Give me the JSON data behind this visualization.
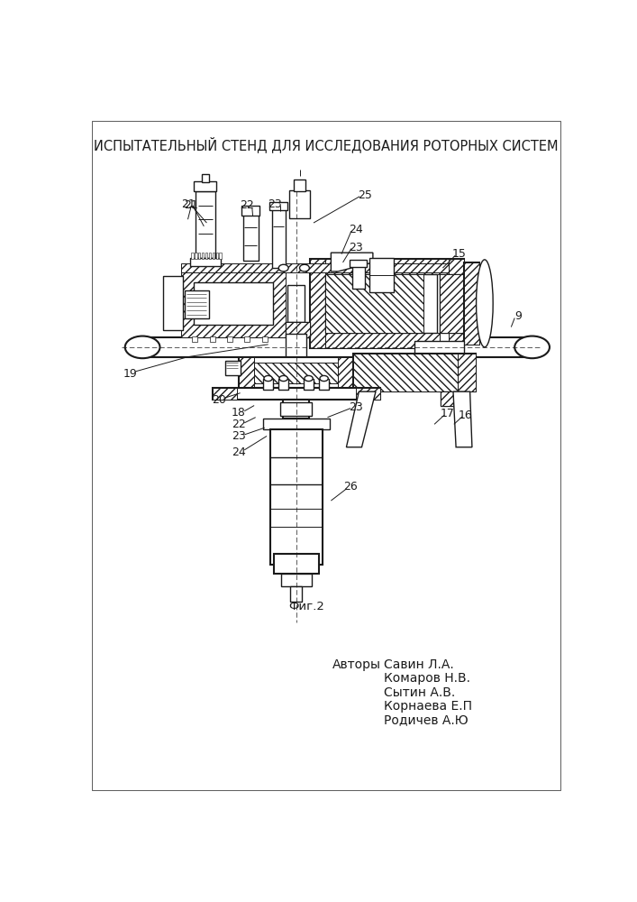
{
  "title": "ИСПЫТАТЕЛЬНЫЙ СТЕНД ДЛЯ ИССЛЕДОВАНИЯ РОТОРНЫХ СИСТЕМ",
  "fig_caption": "Фиг.2",
  "authors_label": "Авторы",
  "authors": [
    "Савин Л.А.",
    "Комаров Н.В.",
    "Сытин А.В.",
    "Корнаева Е.П",
    "Родичев А.Ю"
  ],
  "bg": "#ffffff",
  "lc": "#1a1a1a",
  "title_fs": 10.5,
  "caption_fs": 9.5,
  "author_fs": 10,
  "label_fs": 9
}
